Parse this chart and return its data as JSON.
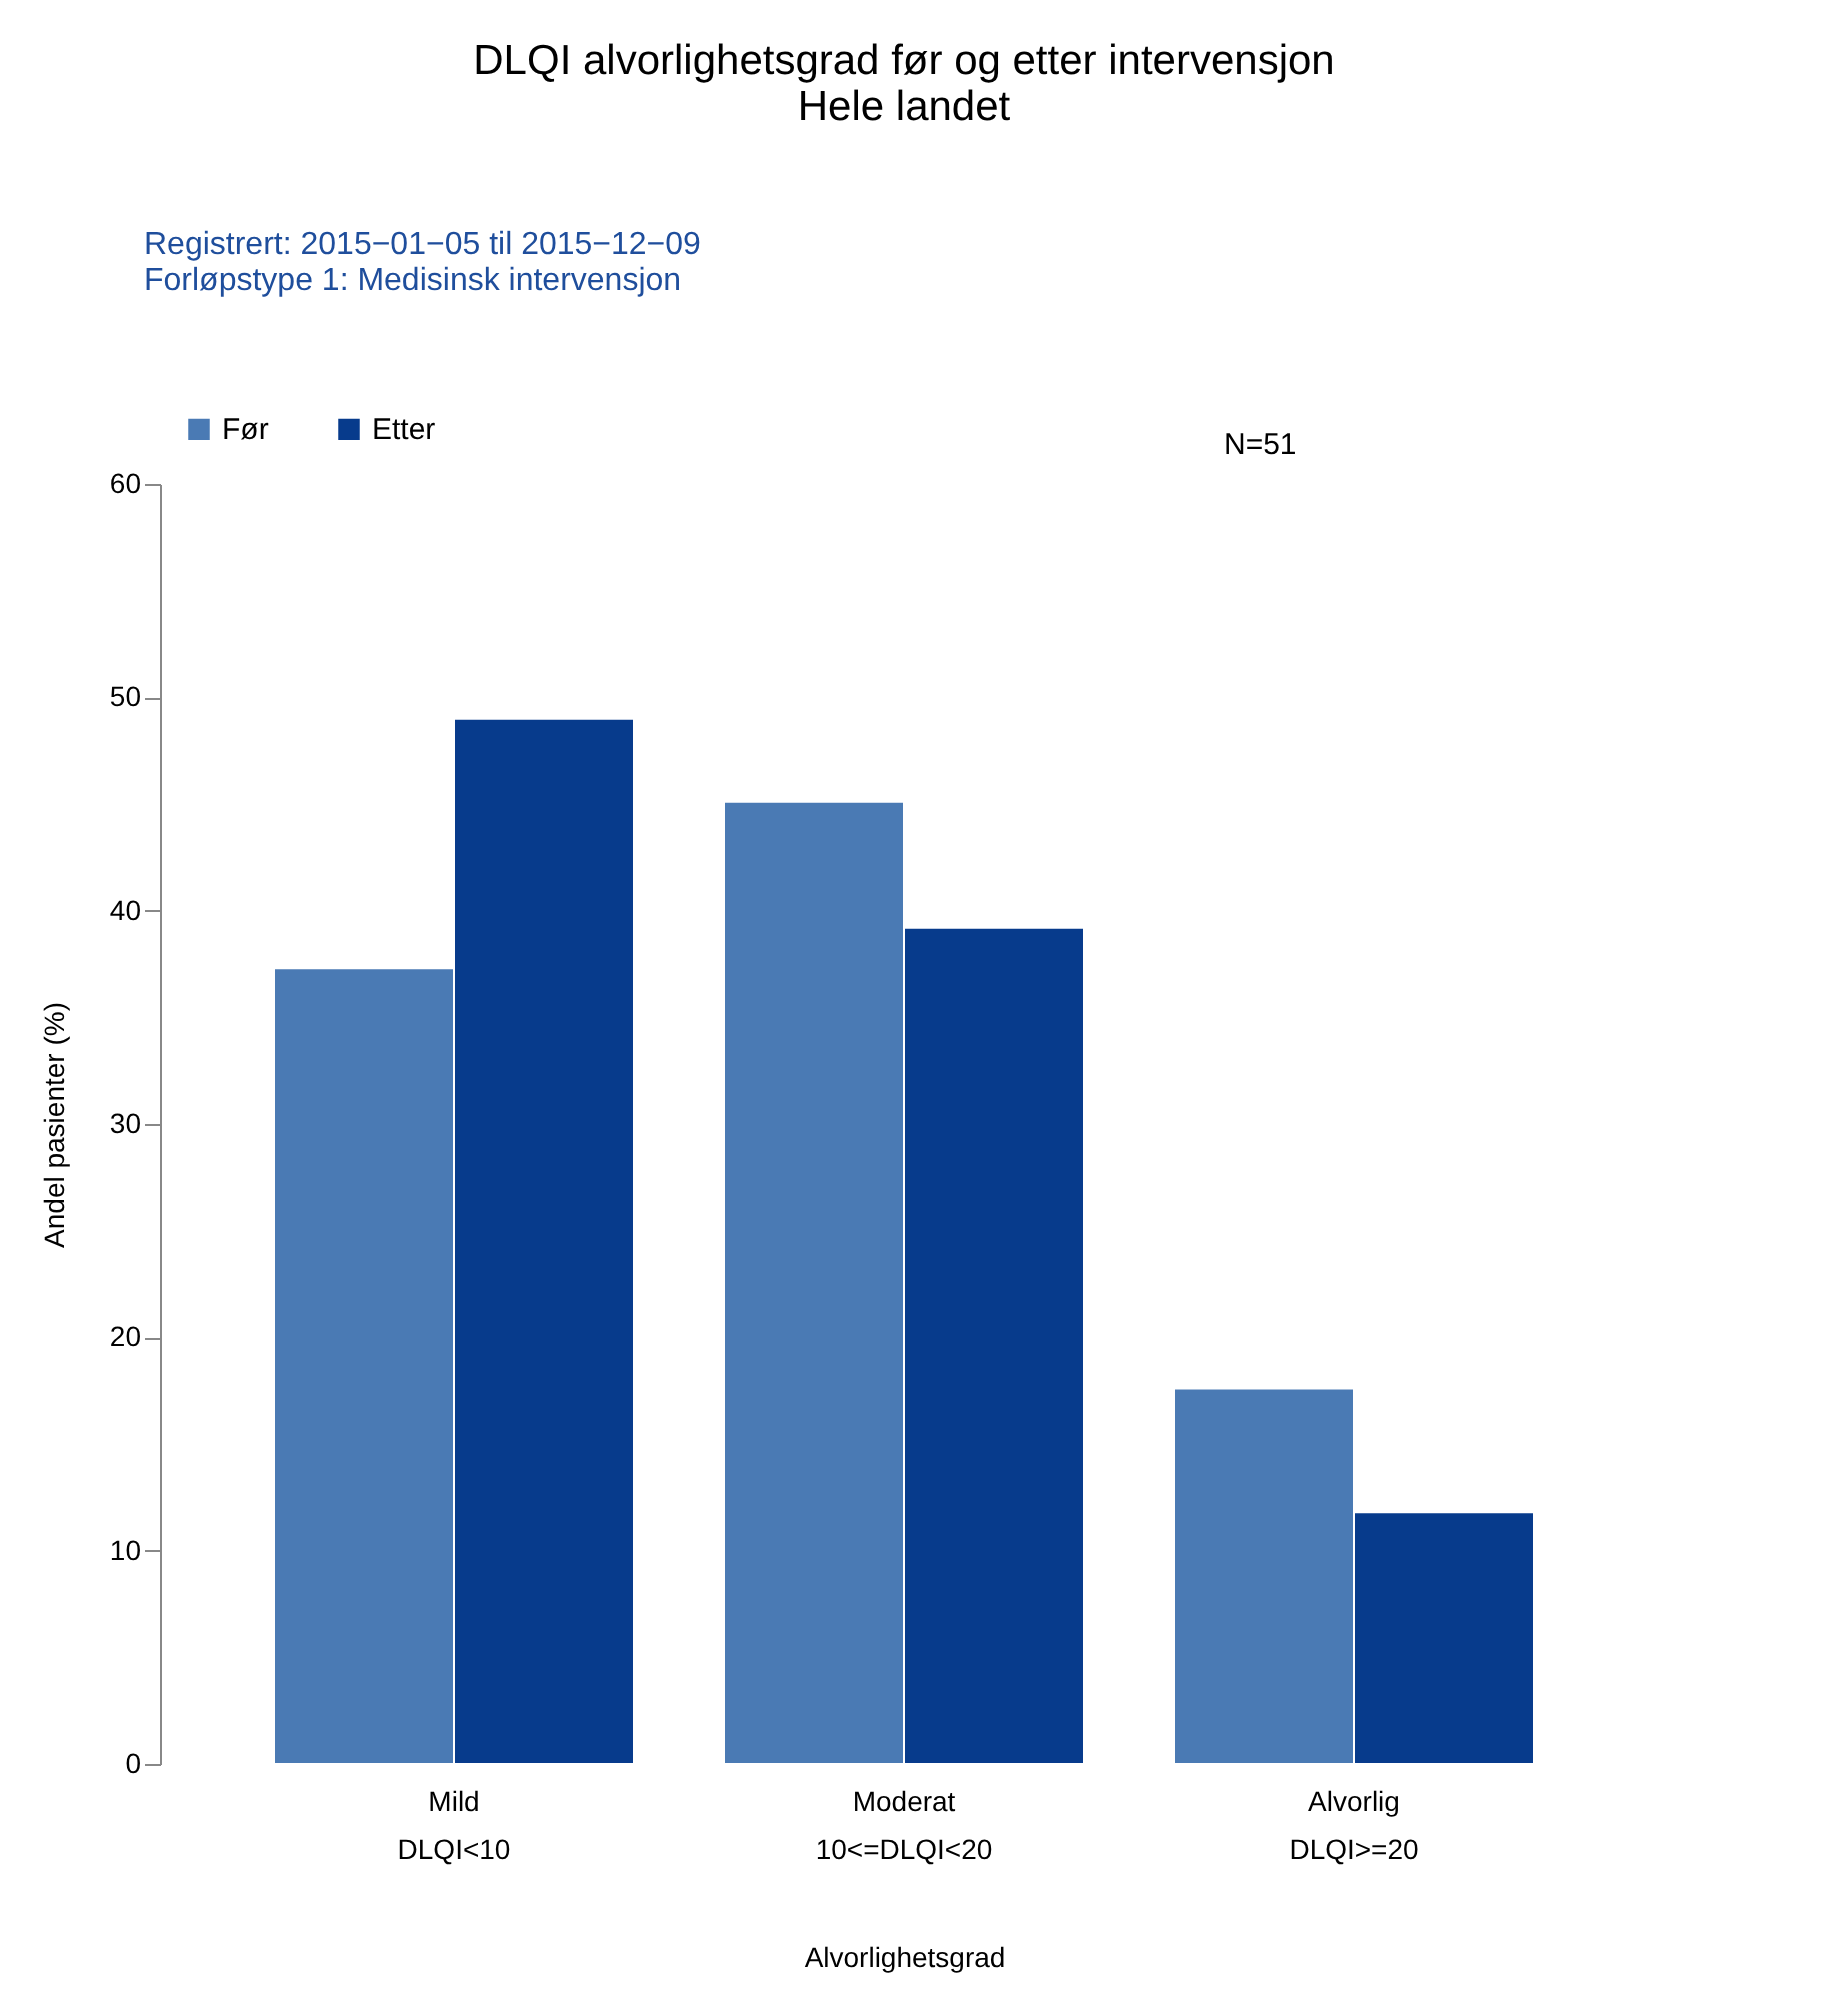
{
  "chart_data": {
    "type": "bar",
    "title": [
      "DLQI alvorlighetsgrad før og etter intervensjon",
      "Hele landet"
    ],
    "xlabel": "Alvorlighetsgrad",
    "ylabel": "Andel pasienter (%)",
    "categories": [
      "Mild\nDLQI<10",
      "Moderat\n10<=DLQI<20",
      "Alvorlig\nDLQI>=20"
    ],
    "series": [
      {
        "name": "Før",
        "color": "#4a7ab4",
        "values": [
          37.3,
          45.1,
          17.6
        ]
      },
      {
        "name": "Etter",
        "color": "#073b8c",
        "values": [
          49.0,
          39.2,
          11.8
        ]
      }
    ],
    "ylim": [
      0,
      60
    ],
    "yticks": [
      0,
      10,
      20,
      30,
      40,
      50,
      60
    ],
    "grid": false,
    "legend": "top",
    "annotations": [
      "Registrert: 2015−01−05 til 2015−12−09",
      "Forløpstype 1: Medisinsk intervensjon",
      "N=51"
    ]
  }
}
